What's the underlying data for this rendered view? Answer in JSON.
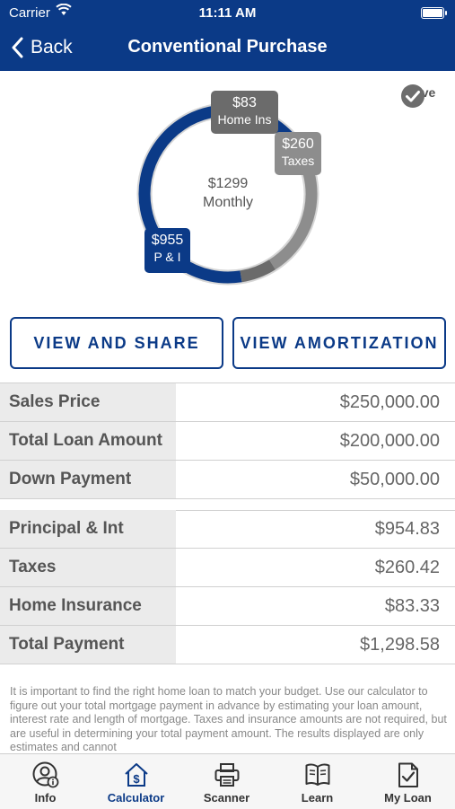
{
  "status_bar": {
    "carrier": "Carrier",
    "time": "11:11 AM"
  },
  "nav": {
    "back_label": "Back",
    "title": "Conventional Purchase"
  },
  "chart_data": {
    "type": "pie",
    "center_amount": "$1299",
    "center_label": "Monthly",
    "slices": [
      {
        "amount": "$955",
        "label": "P & I",
        "value": 954.83,
        "color": "#0b3a87"
      },
      {
        "amount": "$260",
        "label": "Taxes",
        "value": 260.42,
        "color": "#8d8d8d"
      },
      {
        "amount": "$83",
        "label": "Home Ins",
        "value": 83.33,
        "color": "#6b6b6b"
      }
    ]
  },
  "save_label": "Save",
  "buttons": {
    "view_share": "VIEW AND SHARE",
    "view_amortization": "VIEW AMORTIZATION"
  },
  "summary": [
    {
      "label": "Sales Price",
      "value": "$250,000.00"
    },
    {
      "label": "Total Loan Amount",
      "value": "$200,000.00"
    },
    {
      "label": "Down Payment",
      "value": "$50,000.00"
    }
  ],
  "payment": [
    {
      "label": "Principal & Int",
      "value": "$954.83"
    },
    {
      "label": "Taxes",
      "value": "$260.42"
    },
    {
      "label": "Home Insurance",
      "value": "$83.33"
    },
    {
      "label": "Total Payment",
      "value": "$1,298.58"
    }
  ],
  "disclaimer": "It is important to find the right home loan to match your budget. Use our calculator to figure out your total mortgage payment in advance by estimating your loan amount, interest rate and length of mortgage. Taxes and insurance amounts are not required, but are useful in determining your total payment amount.  The results displayed are only estimates and cannot",
  "tabs": [
    {
      "label": "Info",
      "icon": "user-info-icon"
    },
    {
      "label": "Calculator",
      "icon": "calculator-house-icon"
    },
    {
      "label": "Scanner",
      "icon": "printer-icon"
    },
    {
      "label": "Learn",
      "icon": "open-book-icon"
    },
    {
      "label": "My Loan",
      "icon": "document-check-icon"
    }
  ],
  "colors": {
    "brand": "#0b3a87",
    "label_bg": "#ebebeb"
  }
}
